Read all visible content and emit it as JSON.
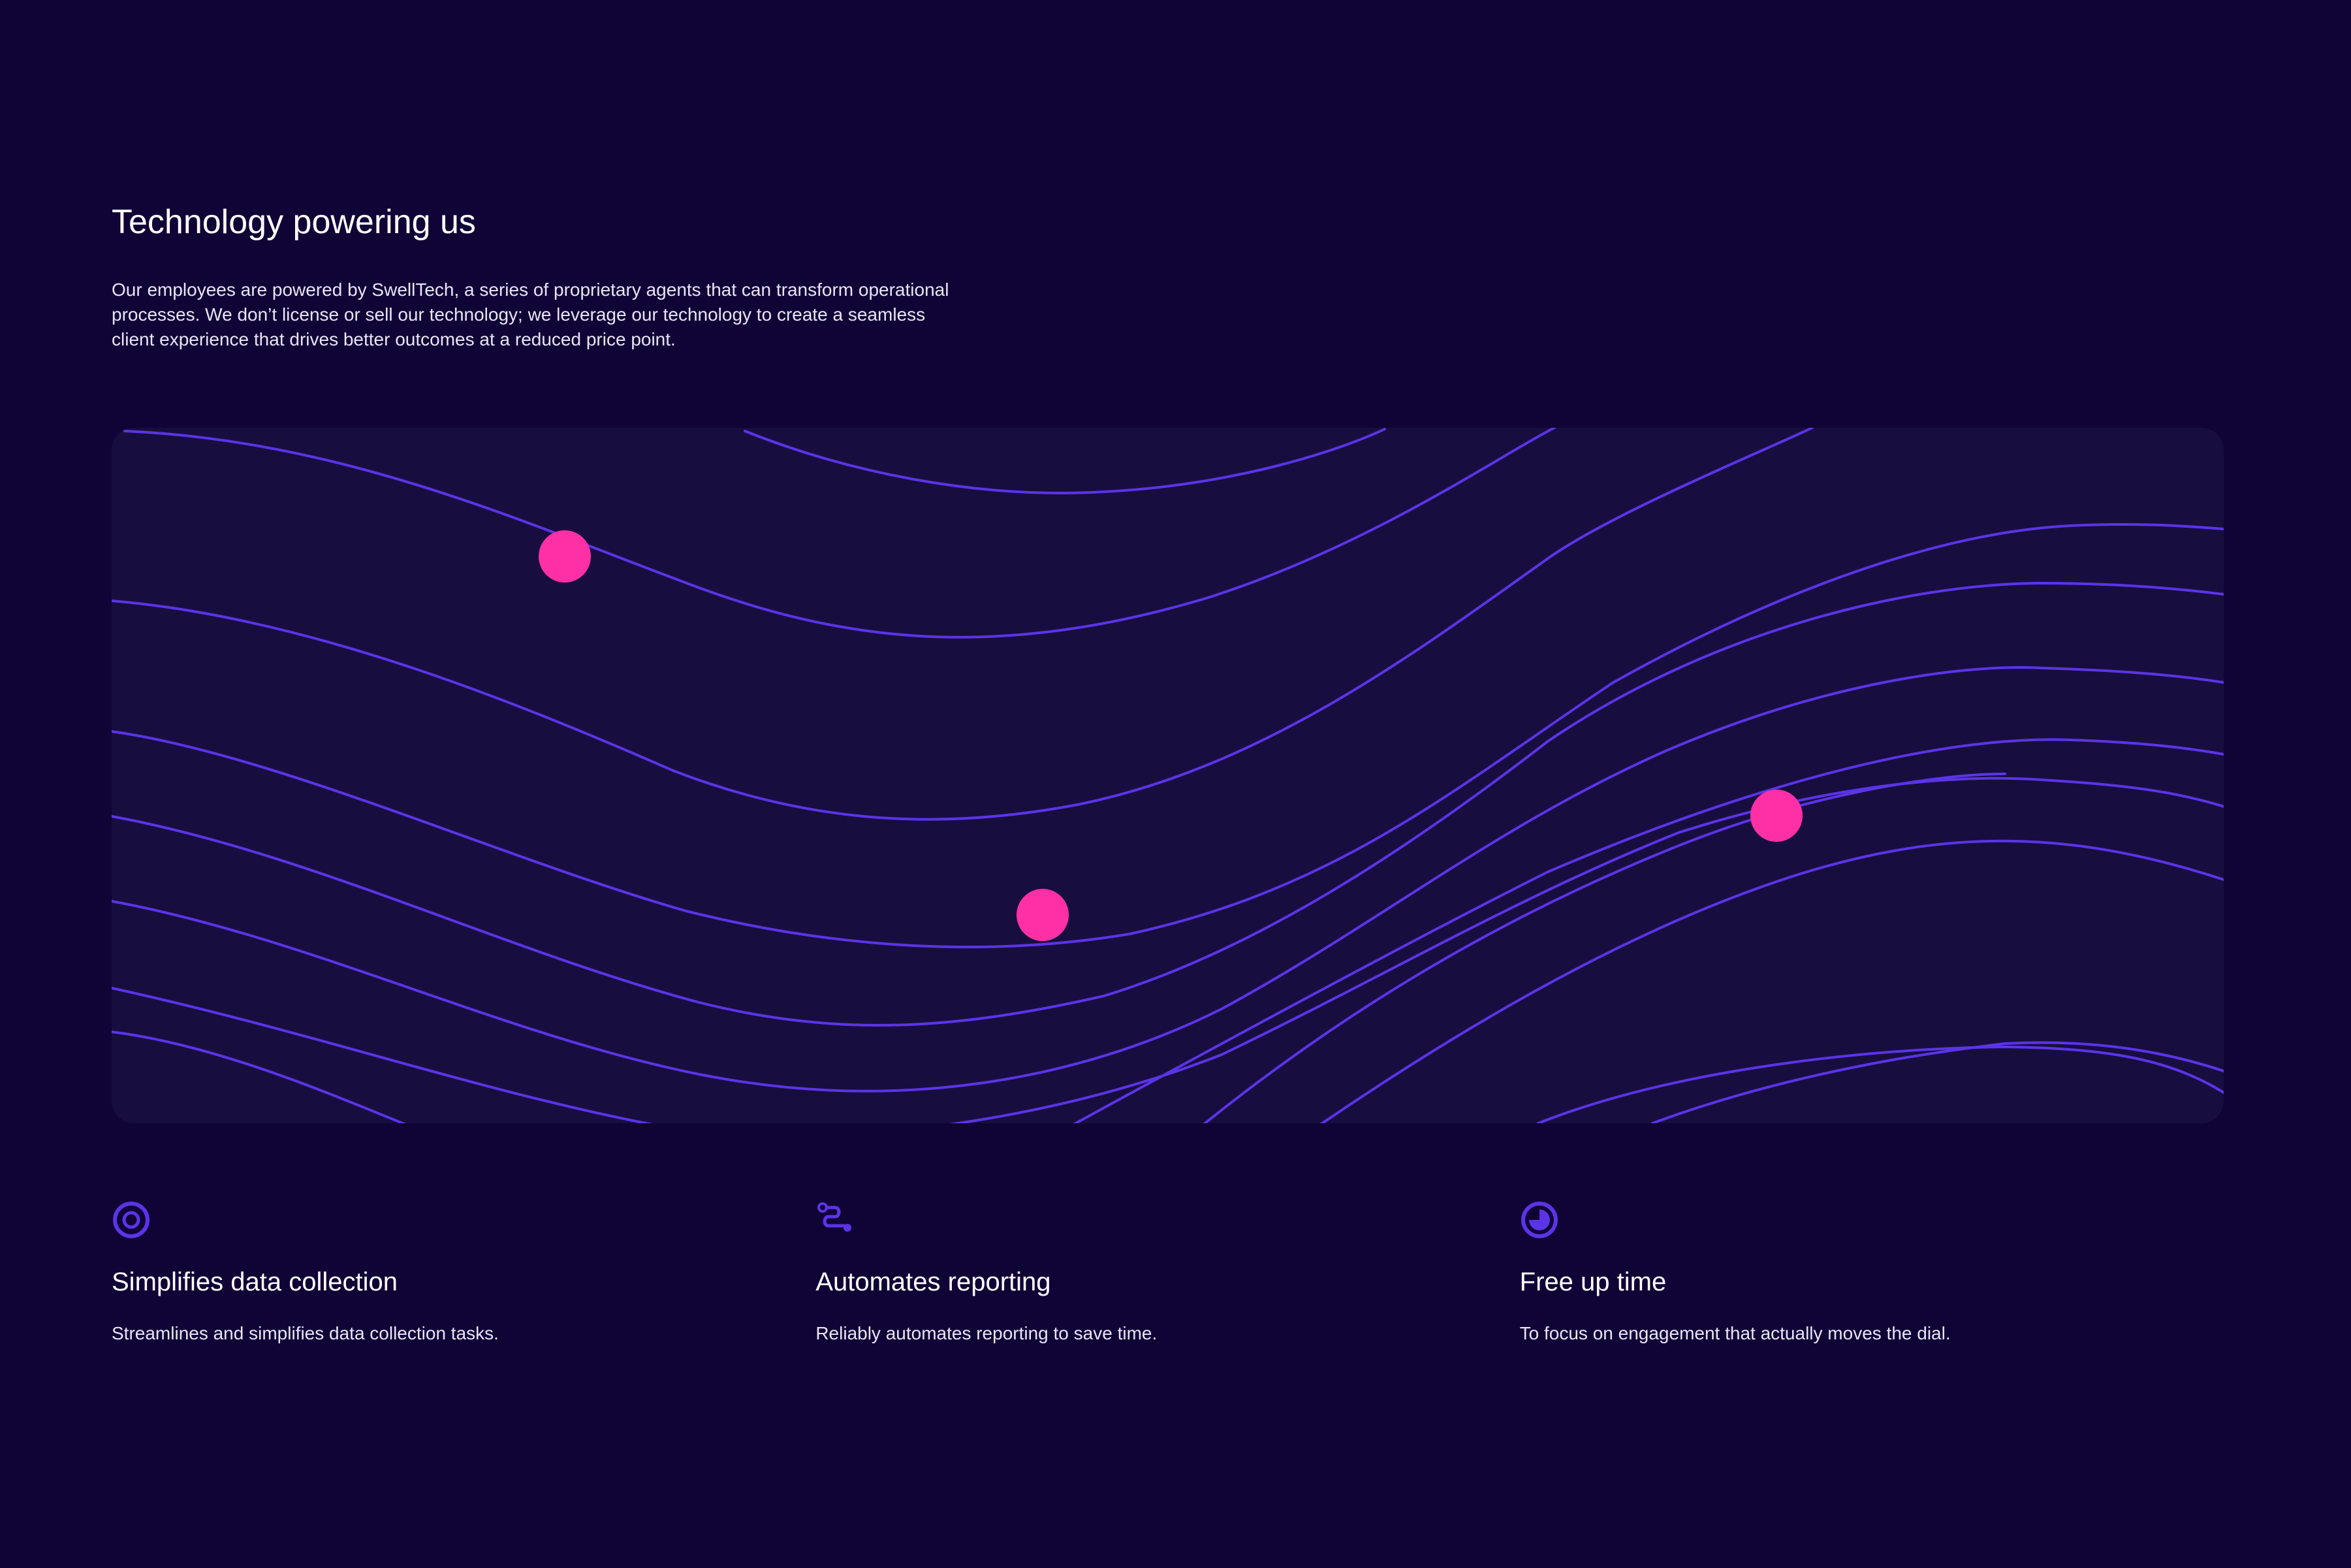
{
  "header": {
    "title": "Technology powering us",
    "intro": "Our employees are powered by SwellTech, a series of proprietary agents that can transform operational processes. We don’t license or sell our technology; we leverage our technology to create a seamless client experience that drives better outcomes at a reduced price point."
  },
  "colors": {
    "background": "#100336",
    "panel": "#170e3f",
    "wave": "#5b34e8",
    "dot": "#ff2fa6",
    "icon": "#5b34e8"
  },
  "features": [
    {
      "icon": "target-icon",
      "title": "Simplifies data collection",
      "text": "Streamlines and simplifies data collection tasks."
    },
    {
      "icon": "route-icon",
      "title": "Automates reporting",
      "text": "Reliably automates reporting to save time."
    },
    {
      "icon": "pie-clock-icon",
      "title": "Free up time",
      "text": "To focus on engagement that actually moves the dial."
    }
  ]
}
